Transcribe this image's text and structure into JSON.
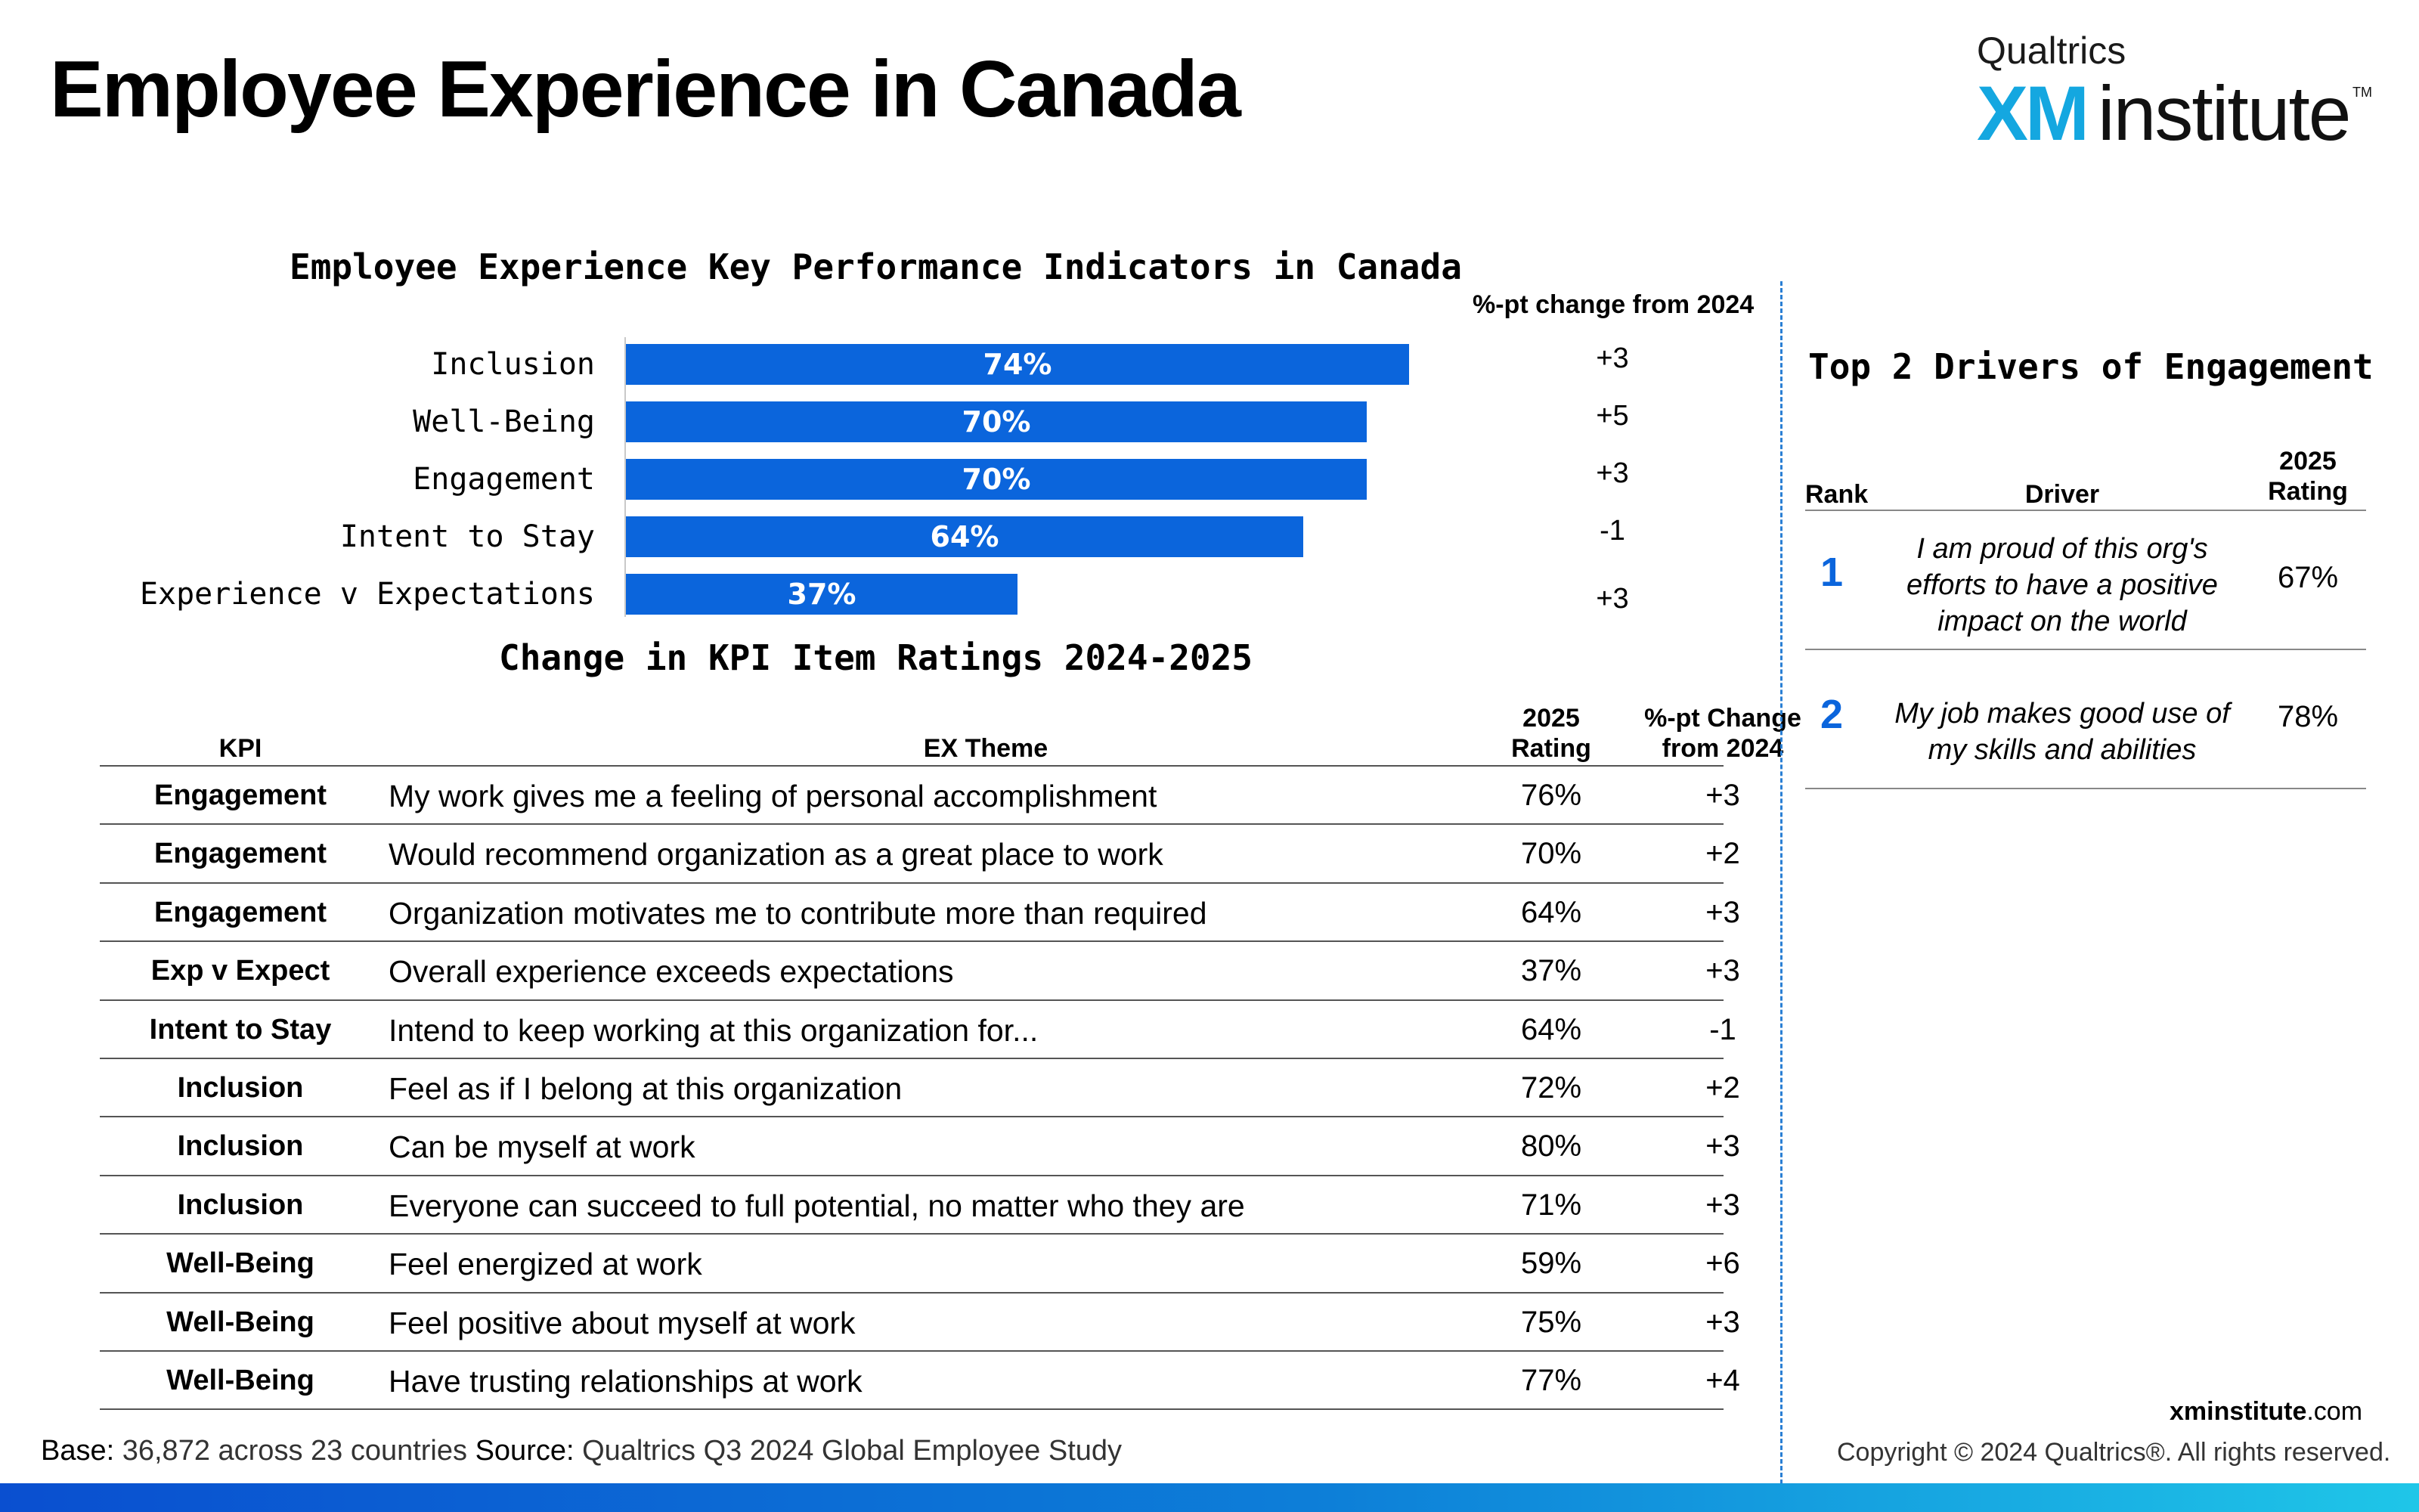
{
  "page": {
    "title": "Employee Experience in Canada",
    "logo": {
      "brand": "Qualtrics",
      "xm": "XM",
      "word": "institute",
      "tm": "TM"
    }
  },
  "kpi_chart": {
    "title": "Employee Experience Key Performance Indicators in Canada",
    "change_header": "%-pt change from 2024"
  },
  "chart_data": {
    "type": "bar",
    "orientation": "horizontal",
    "title": "Employee Experience Key Performance Indicators in Canada",
    "categories": [
      "Inclusion",
      "Well-Being",
      "Engagement",
      "Intent to Stay",
      "Experience v Expectations"
    ],
    "values": [
      74,
      70,
      70,
      64,
      37
    ],
    "value_labels": [
      "74%",
      "70%",
      "70%",
      "64%",
      "37%"
    ],
    "changes": [
      "+3",
      "+5",
      "+3",
      "-1",
      "+3"
    ],
    "xlim": [
      0,
      100
    ],
    "colors": {
      "bar": "#0b65dc"
    }
  },
  "change_table": {
    "title": "Change in KPI Item Ratings 2024-2025",
    "headers": {
      "kpi": "KPI",
      "theme": "EX Theme",
      "rating_1": "2025",
      "rating_2": "Rating",
      "change_1": "%-pt Change",
      "change_2": "from 2024"
    },
    "rows": [
      {
        "kpi": "Engagement",
        "theme": "My work gives me a feeling of personal accomplishment",
        "rating": "76%",
        "change": "+3"
      },
      {
        "kpi": "Engagement",
        "theme": "Would recommend organization as a great place to work",
        "rating": "70%",
        "change": "+2"
      },
      {
        "kpi": "Engagement",
        "theme": "Organization motivates me to contribute more than required",
        "rating": "64%",
        "change": "+3"
      },
      {
        "kpi": "Exp v Expect",
        "theme": "Overall experience exceeds expectations",
        "rating": "37%",
        "change": "+3"
      },
      {
        "kpi": "Intent to Stay",
        "theme": "Intend to keep working at this organization for...",
        "rating": "64%",
        "change": "-1"
      },
      {
        "kpi": "Inclusion",
        "theme": "Feel as if I belong at this organization",
        "rating": "72%",
        "change": "+2"
      },
      {
        "kpi": "Inclusion",
        "theme": "Can be myself at work",
        "rating": "80%",
        "change": "+3"
      },
      {
        "kpi": "Inclusion",
        "theme": "Everyone can succeed to full potential, no matter who they are",
        "rating": "71%",
        "change": "+3"
      },
      {
        "kpi": "Well-Being",
        "theme": "Feel energized at work",
        "rating": "59%",
        "change": "+6"
      },
      {
        "kpi": "Well-Being",
        "theme": "Feel positive about myself at work",
        "rating": "75%",
        "change": "+3"
      },
      {
        "kpi": "Well-Being",
        "theme": "Have trusting relationships at work",
        "rating": "77%",
        "change": "+4"
      }
    ]
  },
  "drivers": {
    "title": "Top 2 Drivers of Engagement",
    "headers": {
      "rank": "Rank",
      "driver": "Driver",
      "rating_1": "2025",
      "rating_2": "Rating"
    },
    "rows": [
      {
        "rank": "1",
        "driver": "I am proud of this org's efforts to have a positive impact on the world",
        "rating": "67%"
      },
      {
        "rank": "2",
        "driver": "My job makes good use of my skills and abilities",
        "rating": "78%"
      }
    ]
  },
  "footer": {
    "base_label": "Base:",
    "base_value": "36,872 across 23 countries",
    "source_label": "Source:",
    "source_value": "Qualtrics Q3 2024 Global Employee Study",
    "url_bold": "xminstitute",
    "url_rest": ".com",
    "copyright": "Copyright © 2024 Qualtrics®. All rights reserved."
  }
}
